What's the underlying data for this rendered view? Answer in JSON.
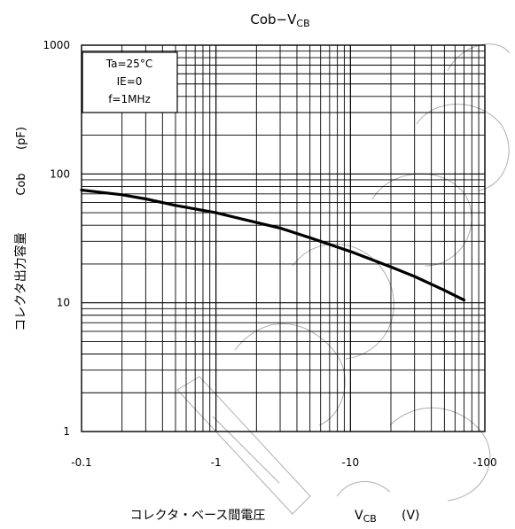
{
  "chart_data": {
    "type": "line",
    "title": "Cob−V",
    "title_sub": "CB",
    "xlabel": "コレクタ・ベース間電圧",
    "xlabel_symbol": "V",
    "xlabel_symbol_sub": "CB",
    "xlabel_unit": "(V)",
    "ylabel": "コレクタ出力容量",
    "ylabel_symbol": "Cob",
    "ylabel_unit": "(pF)",
    "x_scale": "log",
    "y_scale": "log",
    "x_range": [
      -0.1,
      -100
    ],
    "y_range": [
      1,
      1000
    ],
    "x_ticks": [
      {
        "value": -0.1,
        "label": "-0.1"
      },
      {
        "value": -1,
        "label": "-1"
      },
      {
        "value": -10,
        "label": "-10"
      },
      {
        "value": -100,
        "label": "-100"
      }
    ],
    "y_ticks": [
      {
        "value": 1,
        "label": "1"
      },
      {
        "value": 10,
        "label": "10"
      },
      {
        "value": 100,
        "label": "100"
      },
      {
        "value": 1000,
        "label": "1000"
      }
    ],
    "grid": true,
    "conditions": [
      "Ta=25°C",
      "IE=0",
      "f=1MHz"
    ],
    "conditions_placement": "top-left",
    "series": [
      {
        "color": "#000000",
        "points": [
          {
            "x": -0.1,
            "y": 75
          },
          {
            "x": -0.2,
            "y": 69
          },
          {
            "x": -0.3,
            "y": 64
          },
          {
            "x": -0.5,
            "y": 57
          },
          {
            "x": -1,
            "y": 50
          },
          {
            "x": -2,
            "y": 42
          },
          {
            "x": -3,
            "y": 38
          },
          {
            "x": -5,
            "y": 32
          },
          {
            "x": -10,
            "y": 25
          },
          {
            "x": -20,
            "y": 19
          },
          {
            "x": -30,
            "y": 16
          },
          {
            "x": -50,
            "y": 12.5
          },
          {
            "x": -70,
            "y": 10.5
          }
        ]
      }
    ]
  },
  "watermark": "not recommended"
}
